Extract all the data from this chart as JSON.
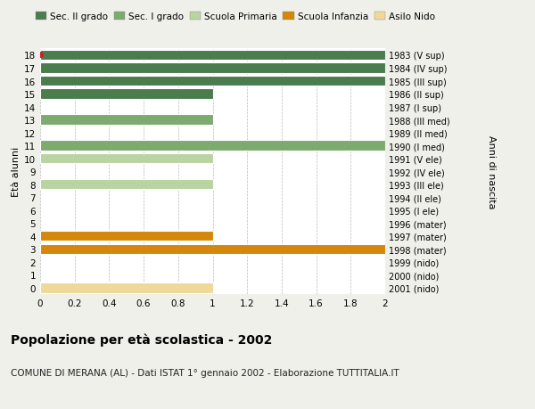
{
  "title": "Popolazione per età scolastica - 2002",
  "subtitle": "COMUNE DI MERANA (AL) - Dati ISTAT 1° gennaio 2002 - Elaborazione TUTTITALIA.IT",
  "ylabel_left": "Età alunni",
  "ylabel_right": "Anni di nascita",
  "xlim": [
    0,
    2.0
  ],
  "xticks": [
    0,
    0.2,
    0.4,
    0.6,
    0.8,
    1.0,
    1.2,
    1.4,
    1.6,
    1.8,
    2.0
  ],
  "background_color": "#f0f0eb",
  "plot_background": "#ffffff",
  "grid_color": "#bbbbbb",
  "ages": [
    18,
    17,
    16,
    15,
    14,
    13,
    12,
    11,
    10,
    9,
    8,
    7,
    6,
    5,
    4,
    3,
    2,
    1,
    0
  ],
  "years": [
    "1983 (V sup)",
    "1984 (IV sup)",
    "1985 (III sup)",
    "1986 (II sup)",
    "1987 (I sup)",
    "1988 (III med)",
    "1989 (II med)",
    "1990 (I med)",
    "1991 (V ele)",
    "1992 (IV ele)",
    "1993 (III ele)",
    "1994 (II ele)",
    "1995 (I ele)",
    "1996 (mater)",
    "1997 (mater)",
    "1998 (mater)",
    "1999 (nido)",
    "2000 (nido)",
    "2001 (nido)"
  ],
  "values": [
    2.0,
    2.0,
    2.0,
    1.0,
    0.0,
    1.0,
    0.0,
    2.0,
    1.0,
    0.0,
    1.0,
    0.0,
    0.0,
    0.0,
    1.0,
    2.0,
    0.0,
    0.0,
    1.0
  ],
  "colors": [
    "#4a7c4e",
    "#4a7c4e",
    "#4a7c4e",
    "#4a7c4e",
    "#4a7c4e",
    "#7daa6e",
    "#7daa6e",
    "#7daa6e",
    "#b8d4a0",
    "#b8d4a0",
    "#b8d4a0",
    "#b8d4a0",
    "#b8d4a0",
    "#c8b870",
    "#d4870a",
    "#d4870a",
    "#f0d898",
    "#f0d898",
    "#f0d898"
  ],
  "legend_labels": [
    "Sec. II grado",
    "Sec. I grado",
    "Scuola Primaria",
    "Scuola Infanzia",
    "Asilo Nido"
  ],
  "legend_colors": [
    "#4a7c4e",
    "#7daa6e",
    "#b8d4a0",
    "#d4870a",
    "#f0d898"
  ],
  "red_dot_age": 18,
  "bar_height": 0.78
}
